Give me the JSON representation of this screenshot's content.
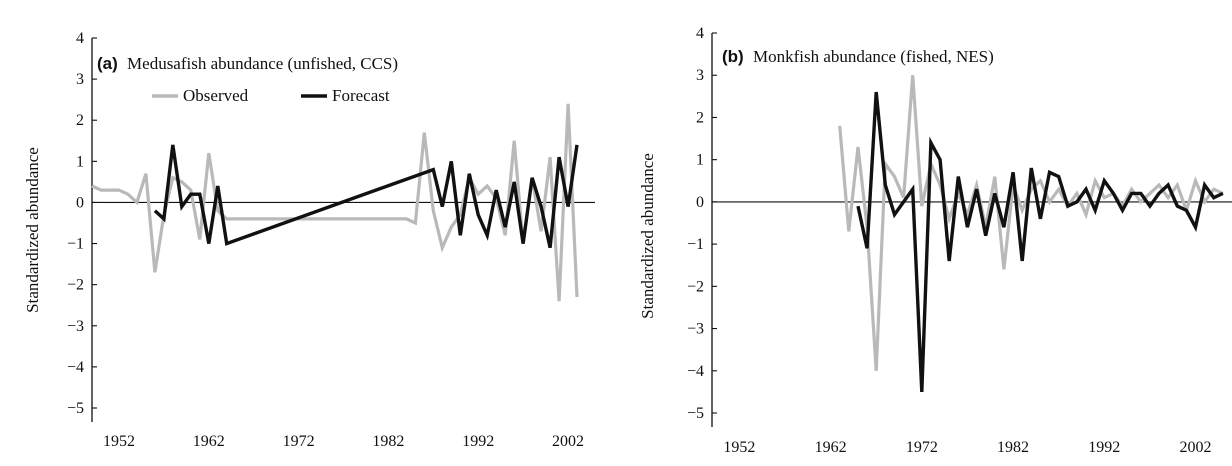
{
  "colors": {
    "observed": "#b9b9b9",
    "forecast": "#111111",
    "axis": "#111111"
  },
  "chart_data": [
    {
      "type": "line",
      "panel_letter": "(a)",
      "title": "Medusafish abundance (unfished, CCS)",
      "xlabel": "",
      "ylabel": "Standardized abundance",
      "xlim": [
        1949,
        2005
      ],
      "ylim": [
        -5,
        4
      ],
      "x_ticks": [
        1952,
        1962,
        1972,
        1982,
        1992,
        2002
      ],
      "y_ticks": [
        4,
        3,
        2,
        1,
        0,
        -1,
        -2,
        -3,
        -4,
        -5
      ],
      "grid": false,
      "legend": {
        "placement": "top-left",
        "entries": [
          "Observed",
          "Forecast"
        ]
      },
      "series": [
        {
          "name": "Observed",
          "color": "#b9b9b9",
          "x": [
            1949,
            1950,
            1951,
            1952,
            1953,
            1954,
            1955,
            1956,
            1957,
            1958,
            1959,
            1960,
            1961,
            1962,
            1963,
            1964,
            1984,
            1985,
            1986,
            1987,
            1988,
            1989,
            1990,
            1991,
            1992,
            1993,
            1994,
            1995,
            1996,
            1997,
            1998,
            1999,
            2000,
            2001,
            2002,
            2003
          ],
          "y": [
            0.4,
            0.3,
            0.3,
            0.3,
            0.2,
            0.0,
            0.7,
            -1.7,
            -0.3,
            0.6,
            0.5,
            0.3,
            -0.9,
            1.2,
            -0.2,
            -0.4,
            -0.4,
            -0.5,
            1.7,
            -0.2,
            -1.1,
            -0.6,
            -0.3,
            0.6,
            0.2,
            0.4,
            0.1,
            -0.8,
            1.5,
            -1.0,
            0.6,
            -0.7,
            1.1,
            -2.4,
            2.4,
            -2.3
          ]
        },
        {
          "name": "Forecast",
          "color": "#111111",
          "x": [
            1956,
            1957,
            1958,
            1959,
            1960,
            1961,
            1962,
            1963,
            1964,
            1987,
            1988,
            1989,
            1990,
            1991,
            1992,
            1993,
            1994,
            1995,
            1996,
            1997,
            1998,
            1999,
            2000,
            2001,
            2002,
            2003
          ],
          "y": [
            -0.2,
            -0.4,
            1.4,
            -0.1,
            0.2,
            0.2,
            -1.0,
            0.4,
            -1.0,
            0.8,
            -0.1,
            1.0,
            -0.8,
            0.7,
            -0.3,
            -0.8,
            0.3,
            -0.6,
            0.5,
            -1.0,
            0.6,
            -0.1,
            -1.1,
            1.1,
            -0.1,
            1.4
          ]
        }
      ]
    },
    {
      "type": "line",
      "panel_letter": "(b)",
      "title": "Monkfish abundance (fished, NES)",
      "xlabel": "",
      "ylabel": "Standardized abundance",
      "xlim": [
        1949,
        2006
      ],
      "ylim": [
        -5,
        4
      ],
      "x_ticks": [
        1952,
        1962,
        1972,
        1982,
        1992,
        2002
      ],
      "y_ticks": [
        4,
        3,
        2,
        1,
        0,
        -1,
        -2,
        -3,
        -4,
        -5
      ],
      "grid": false,
      "legend": null,
      "series": [
        {
          "name": "Observed",
          "color": "#b9b9b9",
          "x": [
            1963,
            1964,
            1965,
            1966,
            1967,
            1968,
            1969,
            1970,
            1971,
            1972,
            1973,
            1974,
            1975,
            1976,
            1977,
            1978,
            1979,
            1980,
            1981,
            1982,
            1983,
            1984,
            1985,
            1986,
            1987,
            1988,
            1989,
            1990,
            1991,
            1992,
            1993,
            1994,
            1995,
            1996,
            1997,
            1998,
            1999,
            2000,
            2001,
            2002,
            2003,
            2004,
            2005
          ],
          "y": [
            1.8,
            -0.7,
            1.3,
            -0.6,
            -4.0,
            0.9,
            0.6,
            0.1,
            3.0,
            -0.1,
            0.9,
            0.4,
            -0.4,
            0.2,
            -0.3,
            0.4,
            -0.6,
            0.6,
            -1.6,
            0.4,
            -0.2,
            0.3,
            0.5,
            0.0,
            0.3,
            -0.1,
            0.2,
            -0.3,
            0.5,
            0.1,
            0.2,
            -0.1,
            0.3,
            0.0,
            0.2,
            0.4,
            0.1,
            0.4,
            -0.2,
            0.5,
            0.0,
            0.3,
            0.2
          ]
        },
        {
          "name": "Forecast",
          "color": "#111111",
          "x": [
            1965,
            1966,
            1967,
            1968,
            1969,
            1970,
            1971,
            1972,
            1973,
            1974,
            1975,
            1976,
            1977,
            1978,
            1979,
            1980,
            1981,
            1982,
            1983,
            1984,
            1985,
            1986,
            1987,
            1988,
            1989,
            1990,
            1991,
            1992,
            1993,
            1994,
            1995,
            1996,
            1997,
            1998,
            1999,
            2000,
            2001,
            2002,
            2003,
            2004,
            2005
          ],
          "y": [
            -0.1,
            -1.1,
            2.6,
            0.4,
            -0.3,
            0.0,
            0.3,
            -4.5,
            1.4,
            1.0,
            -1.4,
            0.6,
            -0.6,
            0.3,
            -0.8,
            0.2,
            -0.6,
            0.7,
            -1.4,
            0.8,
            -0.4,
            0.7,
            0.6,
            -0.1,
            0.0,
            0.3,
            -0.2,
            0.5,
            0.2,
            -0.2,
            0.2,
            0.2,
            -0.1,
            0.2,
            0.4,
            -0.1,
            -0.2,
            -0.6,
            0.4,
            0.1,
            0.2
          ]
        }
      ]
    }
  ]
}
